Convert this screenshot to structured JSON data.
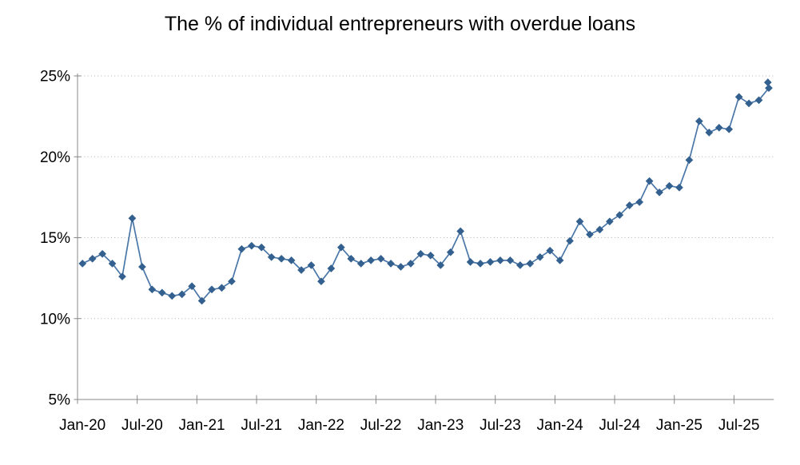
{
  "title": "The % of individual entrepreneurs with overdue loans",
  "colors": {
    "line": "#4a77a8",
    "marker": "#33608f",
    "grid": "#b3b3b3",
    "axis": "#888888",
    "text": "#000000",
    "background": "#ffffff"
  },
  "chart_data": {
    "type": "line",
    "title": "The % of individual entrepreneurs with overdue loans",
    "legend": "none",
    "marker": "diamond",
    "grid": "horizontal-dotted",
    "ylim": [
      5,
      25
    ],
    "y_tick_step": 5,
    "y_tick_labels": [
      "5%",
      "10%",
      "15%",
      "20%",
      "25%"
    ],
    "x_tick_labels": [
      "Jan-20",
      "Jul-20",
      "Jan-21",
      "Jul-21",
      "Jan-22",
      "Jul-22",
      "Jan-23",
      "Jul-23",
      "Jan-24",
      "Jul-24",
      "Jan-25",
      "Jul-25"
    ],
    "x_label_interval_months": 6,
    "x": [
      "Jan-20",
      "Feb-20",
      "Mar-20",
      "Apr-20",
      "May-20",
      "Jun-20",
      "Jul-20",
      "Aug-20",
      "Sep-20",
      "Oct-20",
      "Nov-20",
      "Dec-20",
      "Jan-21",
      "Feb-21",
      "Mar-21",
      "Apr-21",
      "May-21",
      "Jun-21",
      "Jul-21",
      "Aug-21",
      "Sep-21",
      "Oct-21",
      "Nov-21",
      "Dec-21",
      "Jan-22",
      "Feb-22",
      "Mar-22",
      "Apr-22",
      "May-22",
      "Jun-22",
      "Jul-22",
      "Aug-22",
      "Sep-22",
      "Oct-22",
      "Nov-22",
      "Dec-22",
      "Jan-23",
      "Feb-23",
      "Mar-23",
      "Apr-23",
      "May-23",
      "Jun-23",
      "Jul-23",
      "Aug-23",
      "Sep-23",
      "Oct-23",
      "Nov-23",
      "Dec-23",
      "Jan-24",
      "Feb-24",
      "Mar-24",
      "Apr-24",
      "May-24",
      "Jun-24",
      "Jul-24",
      "Aug-24",
      "Sep-24",
      "Oct-24",
      "Nov-24",
      "Dec-24",
      "Jan-25",
      "Feb-25",
      "Mar-25",
      "Apr-25",
      "May-25",
      "Jun-25",
      "Jul-25",
      "Aug-25",
      "Sep-25",
      "Oct-25"
    ],
    "series": [
      {
        "name": "% of individual entrepreneurs with overdue loans",
        "values": [
          13.4,
          13.7,
          14.0,
          13.4,
          12.6,
          16.2,
          13.2,
          11.8,
          11.6,
          11.4,
          11.5,
          12.0,
          11.1,
          11.8,
          11.9,
          12.3,
          14.3,
          14.5,
          14.4,
          13.8,
          13.7,
          13.6,
          13.0,
          13.3,
          12.3,
          13.1,
          14.4,
          13.7,
          13.4,
          13.6,
          13.7,
          13.4,
          13.2,
          13.4,
          14.0,
          13.9,
          13.3,
          14.1,
          15.4,
          13.5,
          13.4,
          13.5,
          13.6,
          13.6,
          13.3,
          13.4,
          13.8,
          14.2,
          13.6,
          14.8,
          16.0,
          15.2,
          15.5,
          16.0,
          16.4,
          17.0,
          17.2,
          18.5,
          17.8,
          18.2,
          18.1,
          19.8,
          22.2,
          21.5,
          21.8,
          21.7,
          23.7,
          23.3,
          23.5,
          24.25
        ]
      }
    ],
    "extra_point": {
      "x": "Oct-25",
      "value": 24.6
    }
  }
}
